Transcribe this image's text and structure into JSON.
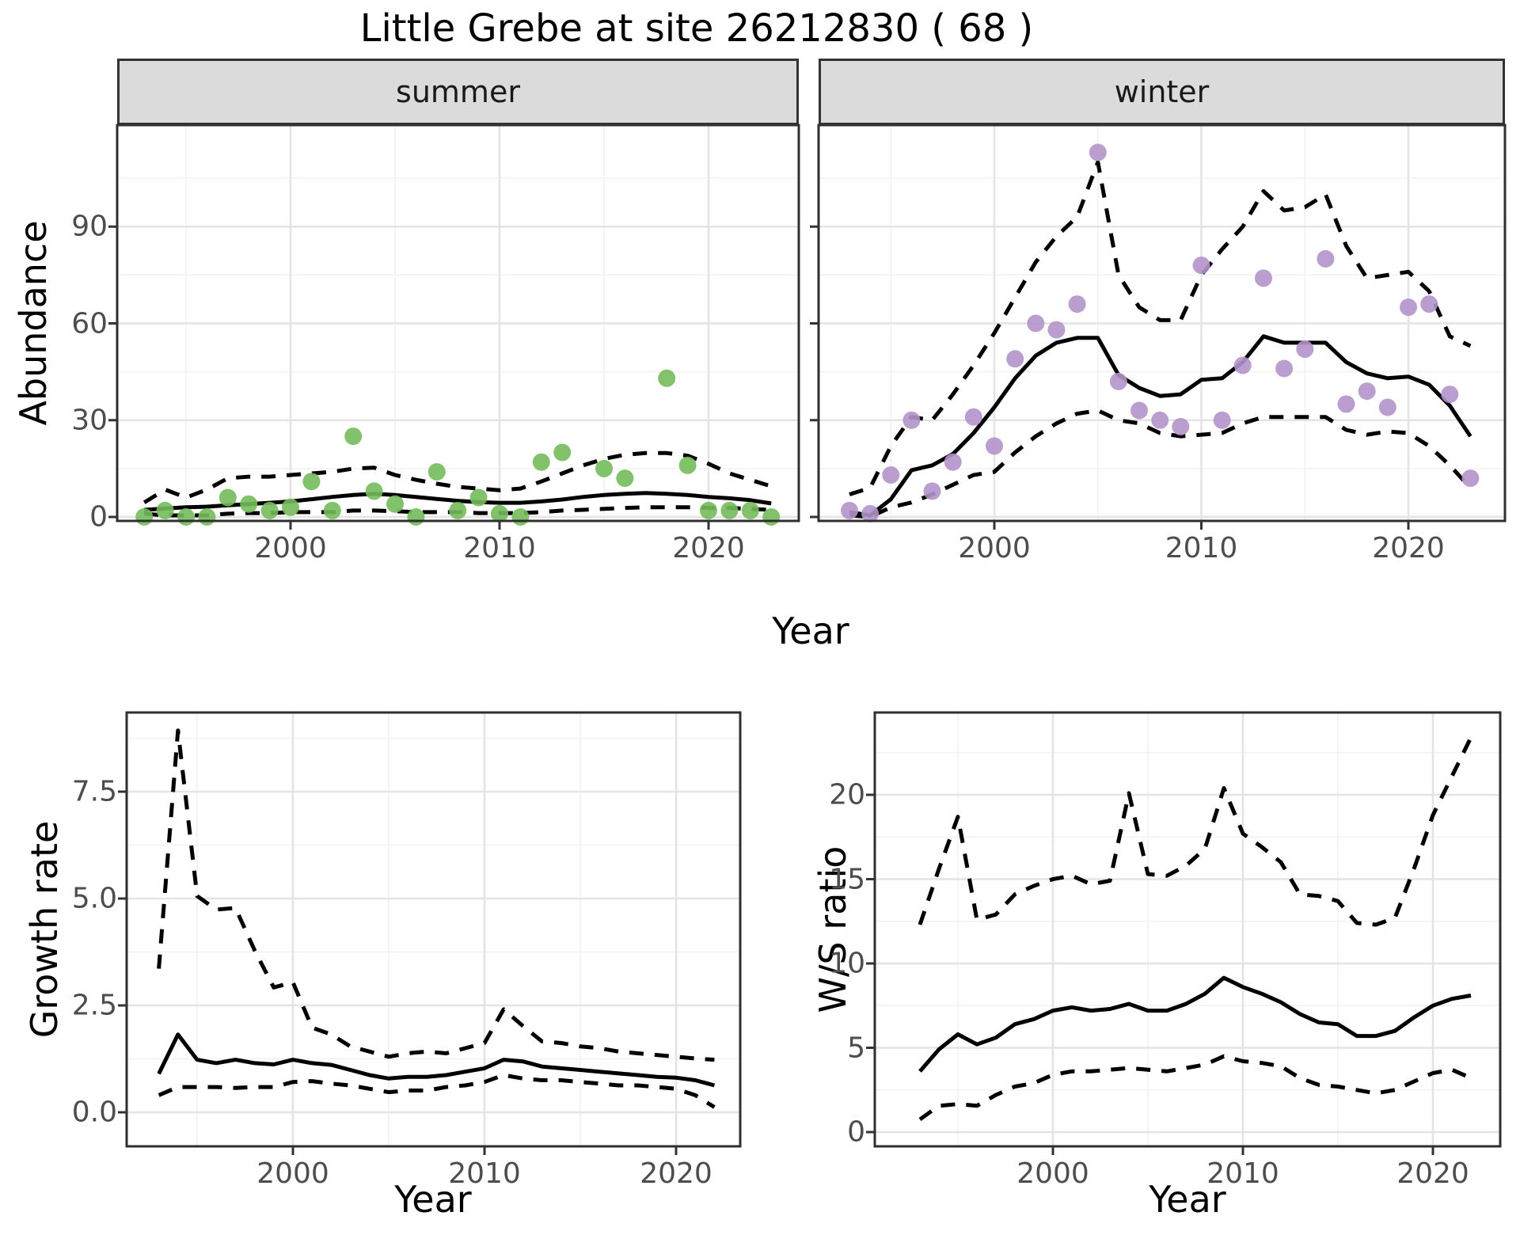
{
  "title": "Little Grebe at site 26212830 ( 68 )",
  "facets": {
    "summer": "summer",
    "winter": "winter"
  },
  "axis_labels": {
    "x_top": "Year",
    "x_bottom_left": "Year",
    "x_bottom_right": "Year",
    "y_top": "Abundance",
    "y_bottom_left": "Growth rate",
    "y_bottom_right": "W/S ratio"
  },
  "colors": {
    "summer_point": "#74BB5B",
    "winter_point": "#B494CB",
    "line": "#000000",
    "grid_major": "#E4E4E4",
    "grid_minor": "#F2F2F2",
    "panel_border": "#2F2F2F",
    "strip_bg": "#DBDBDB",
    "tick_text": "#4D4D4D"
  },
  "chart_data": [
    {
      "id": "summer",
      "type": "line",
      "facet_label": "summer",
      "x_range": [
        1991.7,
        2024.3
      ],
      "y_range": [
        -1,
        121
      ],
      "grid": true,
      "x_ticks": [
        {
          "v": 2000,
          "label": "2000"
        },
        {
          "v": 2010,
          "label": "2010"
        },
        {
          "v": 2020,
          "label": "2020"
        }
      ],
      "x_minor": [
        1995,
        2005,
        2015
      ],
      "y_ticks": [
        {
          "v": 0,
          "label": "0"
        },
        {
          "v": 30,
          "label": "30"
        },
        {
          "v": 60,
          "label": "60"
        },
        {
          "v": 90,
          "label": "90"
        }
      ],
      "y_minor": [
        15,
        45,
        75,
        105
      ],
      "series": {
        "years": [
          1993,
          1994,
          1995,
          1996,
          1997,
          1998,
          1999,
          2000,
          2001,
          2002,
          2003,
          2004,
          2005,
          2006,
          2007,
          2008,
          2009,
          2010,
          2011,
          2012,
          2013,
          2014,
          2015,
          2016,
          2017,
          2018,
          2019,
          2020,
          2021,
          2022,
          2023
        ],
        "mean": [
          2.2,
          2.6,
          3,
          3.2,
          3.6,
          4,
          4.4,
          4.8,
          5.5,
          6.2,
          6.8,
          7.2,
          6.8,
          6.2,
          5.6,
          5,
          4.6,
          4.4,
          4.4,
          4.8,
          5.4,
          6.2,
          6.8,
          7.2,
          7.4,
          7.2,
          6.8,
          6.2,
          5.8,
          5.2,
          4.2
        ],
        "upper": [
          4.5,
          8.5,
          6,
          8.5,
          12,
          12.5,
          12.5,
          13,
          13.5,
          14,
          15,
          15.3,
          13,
          11.5,
          10.3,
          9.3,
          8.8,
          8.3,
          8.8,
          11,
          13.5,
          16,
          18,
          19.3,
          19.8,
          19.8,
          19,
          16.5,
          13.5,
          11.5,
          9.5
        ],
        "lower": [
          1,
          0.5,
          0.5,
          0.5,
          1,
          1.2,
          1.2,
          1.5,
          1.5,
          1.5,
          2,
          2,
          1.8,
          1.5,
          1.5,
          1.5,
          1.2,
          1.2,
          1.2,
          1.5,
          2,
          2.2,
          2.5,
          2.8,
          3,
          3,
          3,
          2.8,
          2.8,
          2.5,
          2.2
        ]
      },
      "points": [
        [
          1993,
          0
        ],
        [
          1994,
          2
        ],
        [
          1995,
          0
        ],
        [
          1996,
          0
        ],
        [
          1997,
          6
        ],
        [
          1998,
          4
        ],
        [
          1999,
          2
        ],
        [
          2000,
          3
        ],
        [
          2001,
          11
        ],
        [
          2002,
          2
        ],
        [
          2003,
          25
        ],
        [
          2004,
          8
        ],
        [
          2005,
          4
        ],
        [
          2006,
          0
        ],
        [
          2007,
          14
        ],
        [
          2008,
          2
        ],
        [
          2009,
          6
        ],
        [
          2010,
          1
        ],
        [
          2011,
          0
        ],
        [
          2012,
          17
        ],
        [
          2013,
          20
        ],
        [
          2015,
          15
        ],
        [
          2016,
          12
        ],
        [
          2018,
          43
        ],
        [
          2019,
          16
        ],
        [
          2020,
          2
        ],
        [
          2021,
          2
        ],
        [
          2022,
          2
        ],
        [
          2023,
          0
        ]
      ]
    },
    {
      "id": "winter",
      "type": "line",
      "facet_label": "winter",
      "x_range": [
        1991.5,
        2024.7
      ],
      "y_range": [
        -1,
        121
      ],
      "grid": true,
      "x_ticks": [
        {
          "v": 2000,
          "label": "2000"
        },
        {
          "v": 2010,
          "label": "2010"
        },
        {
          "v": 2020,
          "label": "2020"
        }
      ],
      "x_minor": [
        1995,
        2005,
        2015
      ],
      "y_ticks": [
        {
          "v": 0,
          "label": ""
        },
        {
          "v": 30,
          "label": ""
        },
        {
          "v": 60,
          "label": ""
        },
        {
          "v": 90,
          "label": ""
        }
      ],
      "y_minor": [
        15,
        45,
        75,
        105
      ],
      "series": {
        "years": [
          1993,
          1994,
          1995,
          1996,
          1997,
          1998,
          1999,
          2000,
          2001,
          2002,
          2003,
          2004,
          2005,
          2006,
          2007,
          2008,
          2009,
          2010,
          2011,
          2012,
          2013,
          2014,
          2015,
          2016,
          2017,
          2018,
          2019,
          2020,
          2021,
          2022,
          2023
        ],
        "mean": [
          1.5,
          0.5,
          5.5,
          14.5,
          16,
          19.5,
          26,
          34,
          43,
          50,
          54,
          55.5,
          55.5,
          44,
          40,
          37.5,
          38,
          42.5,
          43,
          48,
          56,
          54,
          54,
          54,
          48,
          44.5,
          43,
          43.5,
          41,
          34.5,
          25
        ],
        "upper": [
          7,
          9,
          22,
          31,
          30,
          38,
          47,
          57,
          68,
          79,
          87,
          93,
          110,
          75,
          65,
          61,
          61,
          75,
          83,
          90,
          101,
          95,
          96,
          100,
          84,
          74,
          75,
          76,
          70,
          56,
          53
        ],
        "lower": [
          0.5,
          0,
          3,
          4.5,
          7,
          10,
          13,
          14,
          20,
          25,
          29,
          32,
          33,
          30,
          29,
          26,
          25,
          25.5,
          26,
          29,
          31,
          31,
          31,
          31,
          27,
          25.5,
          26.5,
          26,
          22,
          16,
          9
        ]
      },
      "points": [
        [
          1993,
          2
        ],
        [
          1994,
          1
        ],
        [
          1995,
          13
        ],
        [
          1996,
          30
        ],
        [
          1997,
          8
        ],
        [
          1998,
          17
        ],
        [
          1999,
          31
        ],
        [
          2000,
          22
        ],
        [
          2001,
          49
        ],
        [
          2002,
          60
        ],
        [
          2003,
          58
        ],
        [
          2004,
          66
        ],
        [
          2005,
          113
        ],
        [
          2006,
          42
        ],
        [
          2007,
          33
        ],
        [
          2008,
          30
        ],
        [
          2009,
          28
        ],
        [
          2010,
          78
        ],
        [
          2011,
          30
        ],
        [
          2012,
          47
        ],
        [
          2013,
          74
        ],
        [
          2014,
          46
        ],
        [
          2015,
          52
        ],
        [
          2016,
          80
        ],
        [
          2017,
          35
        ],
        [
          2018,
          39
        ],
        [
          2019,
          34
        ],
        [
          2020,
          65
        ],
        [
          2021,
          66
        ],
        [
          2022,
          38
        ],
        [
          2023,
          12
        ]
      ]
    },
    {
      "id": "growth",
      "type": "line",
      "facet_label": "",
      "x_range": [
        1991.3,
        2023.3
      ],
      "y_range": [
        -0.8,
        9.3
      ],
      "grid": true,
      "x_ticks": [
        {
          "v": 2000,
          "label": "2000"
        },
        {
          "v": 2010,
          "label": "2010"
        },
        {
          "v": 2020,
          "label": "2020"
        }
      ],
      "x_minor": [
        1995,
        2005,
        2015
      ],
      "y_ticks": [
        {
          "v": 0,
          "label": "0.0"
        },
        {
          "v": 2.5,
          "label": "2.5"
        },
        {
          "v": 5,
          "label": "5.0"
        },
        {
          "v": 7.5,
          "label": "7.5"
        }
      ],
      "y_minor": [
        1.25,
        3.75,
        6.25,
        8.75
      ],
      "series": {
        "years": [
          1993,
          1994,
          1995,
          1996,
          1997,
          1998,
          1999,
          2000,
          2001,
          2002,
          2003,
          2004,
          2005,
          2006,
          2007,
          2008,
          2009,
          2010,
          2011,
          2012,
          2013,
          2014,
          2015,
          2016,
          2017,
          2018,
          2019,
          2020,
          2021,
          2022
        ],
        "mean": [
          0.9,
          1.82,
          1.23,
          1.15,
          1.23,
          1.15,
          1.12,
          1.23,
          1.15,
          1.11,
          0.99,
          0.87,
          0.79,
          0.83,
          0.83,
          0.87,
          0.95,
          1.03,
          1.23,
          1.19,
          1.07,
          1.03,
          0.99,
          0.95,
          0.91,
          0.87,
          0.83,
          0.81,
          0.75,
          0.63
        ],
        "upper": [
          3.36,
          8.93,
          5.06,
          4.74,
          4.78,
          3.79,
          2.92,
          3.04,
          1.98,
          1.82,
          1.54,
          1.42,
          1.3,
          1.38,
          1.42,
          1.38,
          1.5,
          1.62,
          2.41,
          2.02,
          1.66,
          1.62,
          1.54,
          1.5,
          1.42,
          1.38,
          1.34,
          1.3,
          1.26,
          1.23
        ],
        "lower": [
          0.4,
          0.59,
          0.59,
          0.59,
          0.57,
          0.59,
          0.59,
          0.71,
          0.73,
          0.67,
          0.63,
          0.55,
          0.47,
          0.51,
          0.51,
          0.59,
          0.63,
          0.71,
          0.87,
          0.79,
          0.75,
          0.75,
          0.71,
          0.67,
          0.63,
          0.63,
          0.59,
          0.55,
          0.4,
          0.12
        ]
      },
      "points": []
    },
    {
      "id": "ws",
      "type": "line",
      "facet_label": "",
      "x_range": [
        1990.6,
        2023.5
      ],
      "y_range": [
        -0.9,
        24.9
      ],
      "grid": true,
      "x_ticks": [
        {
          "v": 2000,
          "label": "2000"
        },
        {
          "v": 2010,
          "label": "2010"
        },
        {
          "v": 2020,
          "label": "2020"
        }
      ],
      "x_minor": [
        1995,
        2005,
        2015
      ],
      "y_ticks": [
        {
          "v": 0,
          "label": "0"
        },
        {
          "v": 5,
          "label": "5"
        },
        {
          "v": 10,
          "label": "10"
        },
        {
          "v": 15,
          "label": "15"
        },
        {
          "v": 20,
          "label": "20"
        }
      ],
      "y_minor": [
        2.5,
        7.5,
        12.5,
        17.5,
        22.5
      ],
      "series": {
        "years": [
          1993,
          1994,
          1995,
          1996,
          1997,
          1998,
          1999,
          2000,
          2001,
          2002,
          2003,
          2004,
          2005,
          2006,
          2007,
          2008,
          2009,
          2010,
          2011,
          2012,
          2013,
          2014,
          2015,
          2016,
          2017,
          2018,
          2019,
          2020,
          2021,
          2022
        ],
        "mean": [
          3.6,
          4.9,
          5.8,
          5.2,
          5.6,
          6.4,
          6.7,
          7.2,
          7.4,
          7.2,
          7.3,
          7.6,
          7.2,
          7.2,
          7.6,
          8.2,
          9.15,
          8.6,
          8.2,
          7.7,
          7.0,
          6.5,
          6.4,
          5.7,
          5.7,
          6.0,
          6.8,
          7.5,
          7.9,
          8.1
        ],
        "upper": [
          12.3,
          15.6,
          18.7,
          12.6,
          12.9,
          14.1,
          14.6,
          15.0,
          15.2,
          14.7,
          14.9,
          20.1,
          15.3,
          15.2,
          15.8,
          16.8,
          20.4,
          17.7,
          16.9,
          16.0,
          14.1,
          14.0,
          13.7,
          12.4,
          12.3,
          12.7,
          15.6,
          18.8,
          21.1,
          23.4
        ],
        "lower": [
          0.75,
          1.56,
          1.66,
          1.56,
          2.2,
          2.7,
          2.9,
          3.4,
          3.6,
          3.6,
          3.7,
          3.8,
          3.7,
          3.6,
          3.8,
          4.0,
          4.5,
          4.2,
          4.1,
          3.9,
          3.2,
          2.8,
          2.7,
          2.5,
          2.3,
          2.5,
          3.0,
          3.5,
          3.7,
          3.2
        ]
      },
      "points": []
    }
  ]
}
